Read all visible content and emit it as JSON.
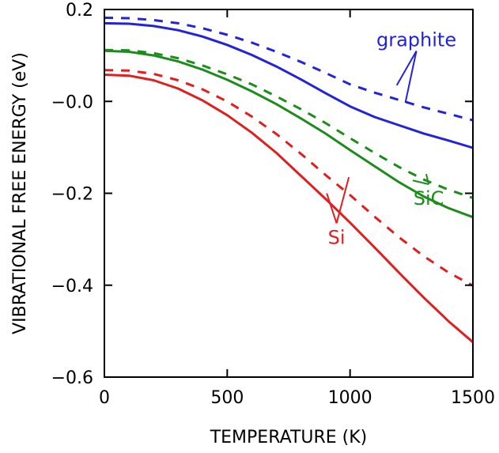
{
  "chart_data": {
    "type": "line",
    "xlabel": "TEMPERATURE (K)",
    "ylabel": "VIBRATIONAL FREE ENERGY (eV)",
    "xlim": [
      0,
      1500
    ],
    "ylim": [
      -0.6,
      0.2
    ],
    "xticks": [
      0,
      500,
      1000,
      1500
    ],
    "xtick_labels": [
      "0",
      "500",
      "1000",
      "1500"
    ],
    "yticks": [
      0.2,
      0.0,
      -0.2,
      -0.4,
      -0.6
    ],
    "ytick_labels": [
      "0.2",
      "−0.0",
      "−0.2",
      "−0.4",
      "−0.6"
    ],
    "grid": false,
    "x": [
      0,
      100,
      200,
      300,
      400,
      500,
      600,
      700,
      800,
      900,
      1000,
      1100,
      1200,
      1300,
      1400,
      1500
    ],
    "series": [
      {
        "label_ref": 0,
        "style": "solid",
        "color": "#2323dd",
        "values": [
          0.17,
          0.169,
          0.164,
          0.155,
          0.141,
          0.123,
          0.101,
          0.076,
          0.048,
          0.018,
          -0.011,
          -0.034,
          -0.052,
          -0.07,
          -0.085,
          -0.101
        ]
      },
      {
        "label_ref": 0,
        "style": "dashed",
        "color": "#2323dd",
        "values": [
          0.182,
          0.181,
          0.177,
          0.17,
          0.159,
          0.145,
          0.128,
          0.108,
          0.086,
          0.062,
          0.037,
          0.019,
          0.003,
          -0.013,
          -0.027,
          -0.041
        ]
      },
      {
        "label_ref": 1,
        "style": "solid",
        "color": "#1d8c1d",
        "values": [
          0.11,
          0.108,
          0.1,
          0.087,
          0.069,
          0.047,
          0.022,
          -0.006,
          -0.037,
          -0.07,
          -0.106,
          -0.141,
          -0.176,
          -0.207,
          -0.232,
          -0.252
        ]
      },
      {
        "label_ref": 1,
        "style": "dashed",
        "color": "#1d8c1d",
        "values": [
          0.112,
          0.111,
          0.105,
          0.094,
          0.078,
          0.059,
          0.037,
          0.011,
          -0.017,
          -0.047,
          -0.08,
          -0.112,
          -0.143,
          -0.17,
          -0.192,
          -0.21
        ]
      },
      {
        "label_ref": 2,
        "style": "solid",
        "color": "#e01f1f",
        "values": [
          0.058,
          0.056,
          0.046,
          0.028,
          0.002,
          -0.03,
          -0.068,
          -0.112,
          -0.162,
          -0.212,
          -0.264,
          -0.318,
          -0.373,
          -0.427,
          -0.478,
          -0.524
        ]
      },
      {
        "label_ref": 2,
        "style": "dashed",
        "color": "#e01f1f",
        "values": [
          0.068,
          0.067,
          0.06,
          0.046,
          0.026,
          0.0,
          -0.033,
          -0.071,
          -0.114,
          -0.16,
          -0.204,
          -0.251,
          -0.296,
          -0.337,
          -0.372,
          -0.401
        ]
      }
    ],
    "labels": [
      {
        "text": "graphite",
        "color": "#2323dd",
        "at": [
          1270,
          0.12
        ],
        "pointers": [
          [
            1190,
            0.035
          ],
          [
            1225,
            -0.003
          ]
        ]
      },
      {
        "text": "SiC",
        "color": "#1d8c1d",
        "at": [
          1320,
          -0.225
        ],
        "pointers": [
          [
            1255,
            -0.172
          ],
          [
            1310,
            -0.158
          ]
        ]
      },
      {
        "text": "Si",
        "color": "#e01f1f",
        "at": [
          945,
          -0.31
        ],
        "pointers": [
          [
            905,
            -0.2
          ],
          [
            995,
            -0.165
          ]
        ]
      }
    ]
  }
}
